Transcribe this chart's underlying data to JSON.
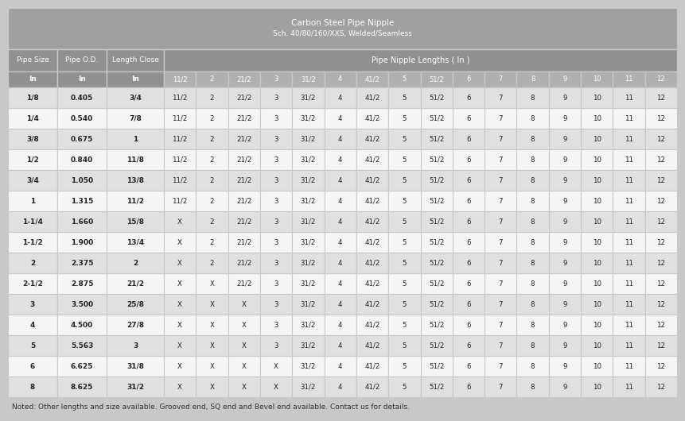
{
  "title_line1": "Carbon Steel Pipe Nipple",
  "title_line2": "Sch. 40/80/160/XXS, Welded/Seamless",
  "note": "Noted: Other lengths and size available. Grooved end, SQ end and Bevel end available. Contact us for details.",
  "col_headers": [
    "Pipe Size",
    "Pipe O.D.",
    "Length Close"
  ],
  "col_units": [
    "In",
    "In",
    "In"
  ],
  "nipple_header": "Pipe Nipple Lengths ( In )",
  "length_cols": [
    "11/2",
    "2",
    "21/2",
    "3",
    "31/2",
    "4",
    "41/2",
    "5",
    "51/2",
    "6",
    "7",
    "8",
    "9",
    "10",
    "11",
    "12"
  ],
  "rows": [
    [
      "1/8",
      "0.405",
      "3/4",
      "11/2",
      "2",
      "21/2",
      "3",
      "31/2",
      "4",
      "41/2",
      "5",
      "51/2",
      "6",
      "7",
      "8",
      "9",
      "10",
      "11",
      "12"
    ],
    [
      "1/4",
      "0.540",
      "7/8",
      "11/2",
      "2",
      "21/2",
      "3",
      "31/2",
      "4",
      "41/2",
      "5",
      "51/2",
      "6",
      "7",
      "8",
      "9",
      "10",
      "11",
      "12"
    ],
    [
      "3/8",
      "0.675",
      "1",
      "11/2",
      "2",
      "21/2",
      "3",
      "31/2",
      "4",
      "41/2",
      "5",
      "51/2",
      "6",
      "7",
      "8",
      "9",
      "10",
      "11",
      "12"
    ],
    [
      "1/2",
      "0.840",
      "11/8",
      "11/2",
      "2",
      "21/2",
      "3",
      "31/2",
      "4",
      "41/2",
      "5",
      "51/2",
      "6",
      "7",
      "8",
      "9",
      "10",
      "11",
      "12"
    ],
    [
      "3/4",
      "1.050",
      "13/8",
      "11/2",
      "2",
      "21/2",
      "3",
      "31/2",
      "4",
      "41/2",
      "5",
      "51/2",
      "6",
      "7",
      "8",
      "9",
      "10",
      "11",
      "12"
    ],
    [
      "1",
      "1.315",
      "11/2",
      "11/2",
      "2",
      "21/2",
      "3",
      "31/2",
      "4",
      "41/2",
      "5",
      "51/2",
      "6",
      "7",
      "8",
      "9",
      "10",
      "11",
      "12"
    ],
    [
      "1-1/4",
      "1.660",
      "15/8",
      "X",
      "2",
      "21/2",
      "3",
      "31/2",
      "4",
      "41/2",
      "5",
      "51/2",
      "6",
      "7",
      "8",
      "9",
      "10",
      "11",
      "12"
    ],
    [
      "1-1/2",
      "1.900",
      "13/4",
      "X",
      "2",
      "21/2",
      "3",
      "31/2",
      "4",
      "41/2",
      "5",
      "51/2",
      "6",
      "7",
      "8",
      "9",
      "10",
      "11",
      "12"
    ],
    [
      "2",
      "2.375",
      "2",
      "X",
      "2",
      "21/2",
      "3",
      "31/2",
      "4",
      "41/2",
      "5",
      "51/2",
      "6",
      "7",
      "8",
      "9",
      "10",
      "11",
      "12"
    ],
    [
      "2-1/2",
      "2.875",
      "21/2",
      "X",
      "X",
      "21/2",
      "3",
      "31/2",
      "4",
      "41/2",
      "5",
      "51/2",
      "6",
      "7",
      "8",
      "9",
      "10",
      "11",
      "12"
    ],
    [
      "3",
      "3.500",
      "25/8",
      "X",
      "X",
      "X",
      "3",
      "31/2",
      "4",
      "41/2",
      "5",
      "51/2",
      "6",
      "7",
      "8",
      "9",
      "10",
      "11",
      "12"
    ],
    [
      "4",
      "4.500",
      "27/8",
      "X",
      "X",
      "X",
      "3",
      "31/2",
      "4",
      "41/2",
      "5",
      "51/2",
      "6",
      "7",
      "8",
      "9",
      "10",
      "11",
      "12"
    ],
    [
      "5",
      "5.563",
      "3",
      "X",
      "X",
      "X",
      "3",
      "31/2",
      "4",
      "41/2",
      "5",
      "51/2",
      "6",
      "7",
      "8",
      "9",
      "10",
      "11",
      "12"
    ],
    [
      "6",
      "6.625",
      "31/8",
      "X",
      "X",
      "X",
      "X",
      "31/2",
      "4",
      "41/2",
      "5",
      "51/2",
      "6",
      "7",
      "8",
      "9",
      "10",
      "11",
      "12"
    ],
    [
      "8",
      "8.625",
      "31/2",
      "X",
      "X",
      "X",
      "X",
      "31/2",
      "4",
      "41/2",
      "5",
      "51/2",
      "6",
      "7",
      "8",
      "9",
      "10",
      "11",
      "12"
    ]
  ],
  "bg_outer": "#c8c8c8",
  "title_bg": "#a0a0a0",
  "title_fg": "#ffffff",
  "hdr1_bg": "#909090",
  "hdr1_fg": "#ffffff",
  "hdr2_bg": "#b0b0b0",
  "hdr2_fg": "#ffffff",
  "row_a_bg": "#f5f5f5",
  "row_b_bg": "#e0e0e0",
  "cell_fg": "#222222",
  "border_col": "#c8c8c8",
  "note_fg": "#333333"
}
